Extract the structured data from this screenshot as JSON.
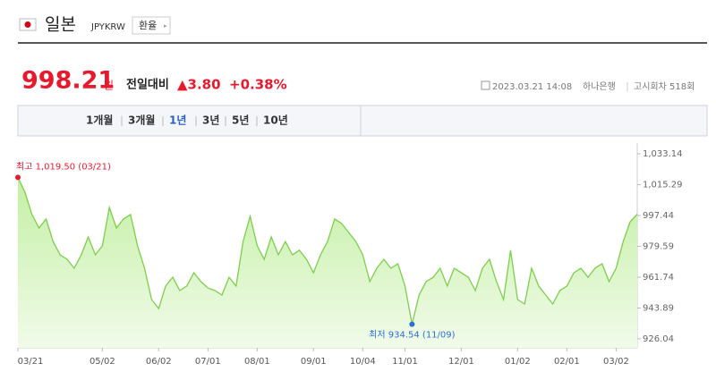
{
  "header": {
    "name": "일본",
    "code": "JPYKRW",
    "button": "환율"
  },
  "quote": {
    "price": "998.21",
    "unit": "원",
    "change_label": "전일대비",
    "change": "▲3.80",
    "change_pct": "+0.38%",
    "datetime": "2023.03.21 14:08",
    "bank": "하나은행",
    "round": "고시회차 518회"
  },
  "tabs": [
    "1개월",
    "3개월",
    "1년",
    "3년",
    "5년",
    "10년"
  ],
  "chart_data": {
    "type": "area",
    "categories": [
      "03/21",
      null,
      null,
      null,
      null,
      null,
      null,
      null,
      null,
      null,
      null,
      null,
      "05/02",
      null,
      null,
      null,
      null,
      null,
      null,
      null,
      "06/02",
      null,
      null,
      null,
      null,
      null,
      null,
      "07/01",
      null,
      null,
      null,
      null,
      null,
      null,
      "08/01",
      null,
      null,
      null,
      null,
      null,
      null,
      null,
      "09/01",
      null,
      null,
      null,
      null,
      null,
      null,
      "10/04",
      null,
      null,
      null,
      null,
      null,
      "11/01",
      null,
      null,
      null,
      null,
      null,
      null,
      null,
      "12/01",
      null,
      null,
      null,
      null,
      null,
      null,
      null,
      "01/02",
      null,
      null,
      null,
      null,
      null,
      null,
      "02/01",
      null,
      null,
      null,
      null,
      null,
      null,
      "03/02",
      null,
      null,
      null
    ],
    "series": [
      {
        "name": "JPYKRW",
        "color": "#7ccf4a",
        "values": [
          1019.5,
          1010.9,
          998.0,
          990.2,
          995.4,
          982.4,
          974.7,
          972.1,
          966.9,
          974.7,
          985.0,
          974.7,
          979.9,
          1002.1,
          990.2,
          995.4,
          998.0,
          979.9,
          966.9,
          948.8,
          943.6,
          956.6,
          961.7,
          954.0,
          956.6,
          964.3,
          959.2,
          955.5,
          954.0,
          951.4,
          961.7,
          956.6,
          982.4,
          996.9,
          979.9,
          972.1,
          985.0,
          974.7,
          982.4,
          974.7,
          977.3,
          972.1,
          964.3,
          974.7,
          982.4,
          995.4,
          992.8,
          987.6,
          982.4,
          974.7,
          959.2,
          966.9,
          972.1,
          966.9,
          969.5,
          956.6,
          934.54,
          951.4,
          959.2,
          961.7,
          966.9,
          956.6,
          966.9,
          964.3,
          961.7,
          954.0,
          966.9,
          972.1,
          959.2,
          948.8,
          977.3,
          948.8,
          946.2,
          966.9,
          956.6,
          951.4,
          946.2,
          954.0,
          956.6,
          964.3,
          966.9,
          961.7,
          966.9,
          969.5,
          959.2,
          966.9,
          982.4,
          993.8,
          998.21
        ]
      }
    ],
    "ylim": [
      926.04,
      1033.14
    ],
    "yticks": [
      926.04,
      943.89,
      961.74,
      979.59,
      997.44,
      {
        "value": 1015.29,
        "label": "1,015.29"
      },
      {
        "value": 1033.14,
        "label": "1,033.14"
      }
    ],
    "annotations": [
      {
        "text": "최고 1,019.50 (03/21)",
        "index": 0,
        "color": "#e8192c"
      },
      {
        "text": "최저 934.54 (11/09)",
        "index": 56,
        "color": "#2b6fd6"
      }
    ]
  }
}
